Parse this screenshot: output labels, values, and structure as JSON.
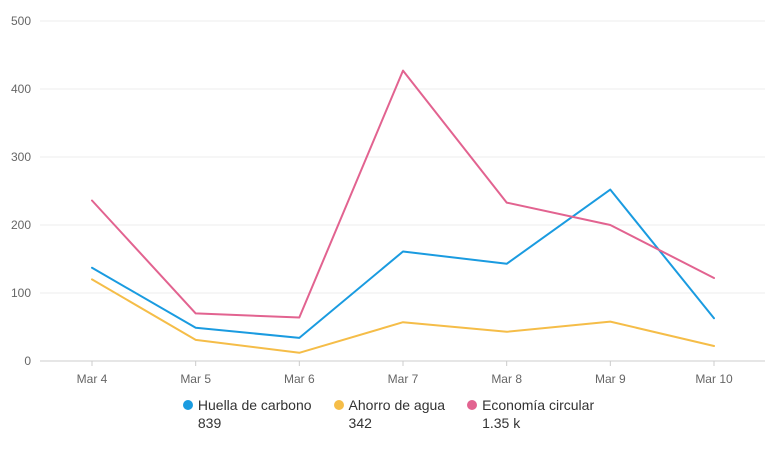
{
  "colors": {
    "huella": "#1a9be0",
    "ahorro": "#f5bd48",
    "economia": "#e26390",
    "grid": "#ececec",
    "axis": "#cccccc"
  },
  "legend": [
    {
      "name": "Huella de carbono",
      "total": "839",
      "color": "#1a9be0"
    },
    {
      "name": "Ahorro de agua",
      "total": "342",
      "color": "#f5bd48"
    },
    {
      "name": "Economía circular",
      "total": "1.35 k",
      "color": "#e26390"
    }
  ],
  "chart_data": {
    "type": "line",
    "categories": [
      "Mar 4",
      "Mar 5",
      "Mar 6",
      "Mar 7",
      "Mar 8",
      "Mar 9",
      "Mar 10"
    ],
    "yticks": [
      "0",
      "100",
      "200",
      "300",
      "400",
      "500"
    ],
    "ylim": [
      0,
      500
    ],
    "grid": true,
    "legend_position": "bottom",
    "series": [
      {
        "name": "Huella de carbono",
        "color": "#1a9be0",
        "values": [
          137,
          49,
          34,
          161,
          143,
          252,
          63
        ]
      },
      {
        "name": "Ahorro de agua",
        "color": "#f5bd48",
        "values": [
          120,
          31,
          12,
          57,
          43,
          58,
          22
        ]
      },
      {
        "name": "Economía circular",
        "color": "#e26390",
        "values": [
          236,
          70,
          64,
          427,
          233,
          200,
          122
        ]
      }
    ]
  }
}
